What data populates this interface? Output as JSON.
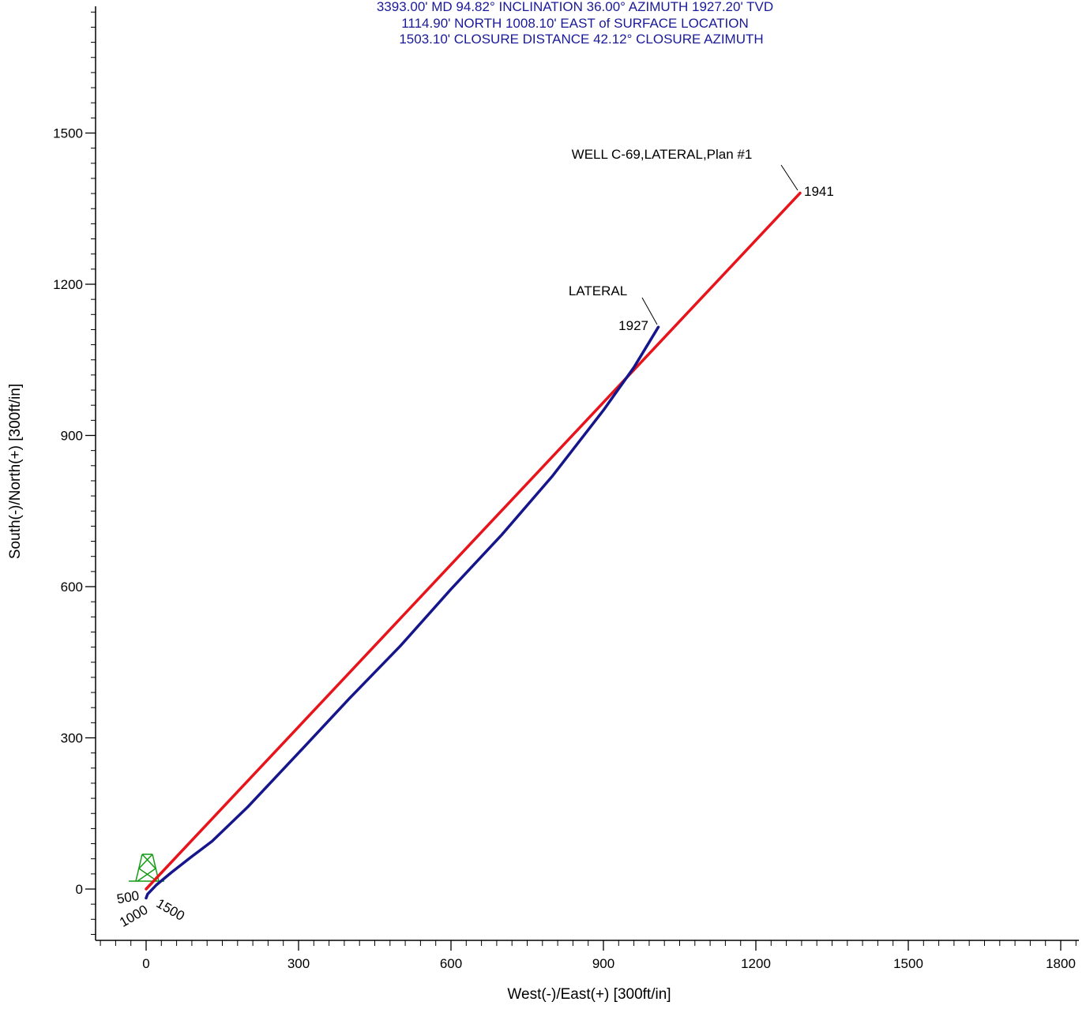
{
  "header": {
    "lines": [
      "3393.00' MD   94.82° INCLINATION   36.00° AZIMUTH   1927.20' TVD",
      "1114.90' NORTH   1008.10' EAST of SURFACE LOCATION",
      "1503.10' CLOSURE DISTANCE   42.12° CLOSURE AZIMUTH"
    ],
    "color": "#1a1a99"
  },
  "chart_data": {
    "type": "line",
    "title": "",
    "xlabel": "West(-)/East(+) [300ft/in]",
    "ylabel": "South(-)/North(+) [300ft/in]",
    "xlim": [
      -90,
      1830
    ],
    "ylim": [
      -110,
      1760
    ],
    "x_ticks": [
      0,
      300,
      600,
      900,
      1200,
      1500,
      1800
    ],
    "x_tick_labels": [
      "0",
      "300",
      "600",
      "900",
      "1200",
      "1500",
      "1800"
    ],
    "y_ticks": [
      0,
      300,
      600,
      900,
      1200,
      1500
    ],
    "y_tick_labels": [
      "0",
      "300",
      "600",
      "900",
      "1200",
      "1500"
    ],
    "minor_tick_step": 30,
    "grid": false,
    "series": [
      {
        "name": "WELL C-69,LATERAL,Plan #1",
        "color": "#e8141c",
        "x": [
          0,
          1287
        ],
        "y": [
          0,
          1381
        ],
        "end_label": "1941"
      },
      {
        "name": "LATERAL",
        "color": "#16168c",
        "x": [
          0,
          3,
          20,
          50,
          88,
          130,
          200,
          300,
          400,
          500,
          600,
          700,
          800,
          900,
          960,
          1008
        ],
        "y": [
          -18,
          -10,
          8,
          33,
          63,
          95,
          163,
          270,
          378,
          482,
          595,
          703,
          820,
          950,
          1035,
          1115
        ],
        "end_label": "1927"
      }
    ],
    "md_markers": [
      "500",
      "1000",
      "1500"
    ],
    "surface_marker": "rig-icon"
  }
}
